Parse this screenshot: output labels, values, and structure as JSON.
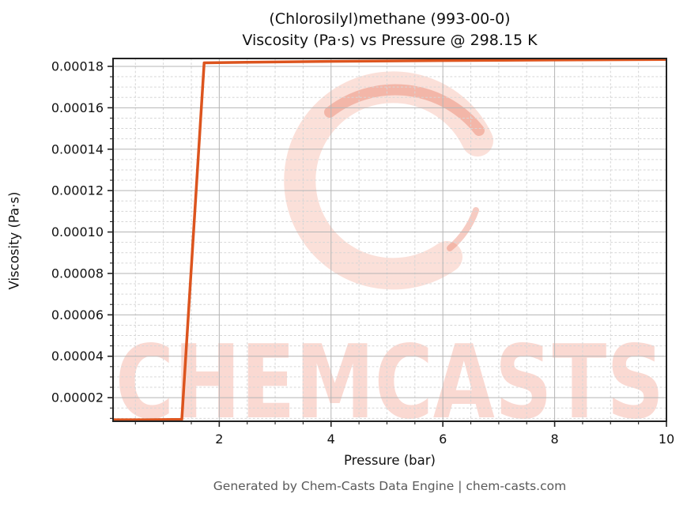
{
  "header": {
    "title_line1": "(Chlorosilyl)methane (993-00-0)",
    "title_line2": "Viscosity (Pa·s) vs Pressure @ 298.15 K"
  },
  "footer": {
    "text": "Generated by Chem-Casts Data Engine | chem-casts.com"
  },
  "watermark": {
    "text": "CHEMCASTS",
    "logo": "brush-circle-logo"
  },
  "colors": {
    "line": "#dc541e",
    "spine": "#222222",
    "grid_major": "#b5b5b5",
    "grid_minor": "#d6d6d6",
    "tick": "#222222",
    "title_text": "#111111",
    "footer_text": "#595959",
    "watermark_fill": "rgba(238,120,92,0.28)",
    "watermark_logo": "rgba(240,130,103,0.25)",
    "watermark_logo_dark": "rgba(228,96,70,0.33)"
  },
  "chart_data": {
    "type": "line",
    "title": "(Chlorosilyl)methane (993-00-0) — Viscosity (Pa·s) vs Pressure @ 298.15 K",
    "xlabel": "Pressure (bar)",
    "ylabel": "Viscosity (Pa·s)",
    "xlim": [
      0.1,
      10
    ],
    "ylim": [
      8.6e-06,
      0.0001838
    ],
    "x_major_ticks": [
      2,
      4,
      6,
      8,
      10
    ],
    "x_tick_labels": [
      "2",
      "4",
      "6",
      "8",
      "10"
    ],
    "x_minor_step": 0.5,
    "y_major_ticks": [
      2e-05,
      4e-05,
      6e-05,
      8e-05,
      0.0001,
      0.00012,
      0.00014,
      0.00016,
      0.00018
    ],
    "y_tick_labels": [
      "0.00002",
      "0.00004",
      "0.00006",
      "0.00008",
      "0.00010",
      "0.00012",
      "0.00014",
      "0.00016",
      "0.00018"
    ],
    "y_minor_step": 5e-06,
    "grid": "major solid, minor dashed, both axes",
    "legend": "none",
    "series": [
      {
        "name": "Viscosity vs Pressure at 298.15 K",
        "color": "#dc541e",
        "x": [
          0.1,
          0.7,
          1.33,
          1.73,
          2.5,
          4.0,
          6.0,
          8.0,
          10.0
        ],
        "y": [
          9.3e-06,
          9.3e-06,
          9.5e-06,
          0.0001817,
          0.000182,
          0.0001824,
          0.0001828,
          0.0001831,
          0.0001833
        ]
      }
    ]
  }
}
